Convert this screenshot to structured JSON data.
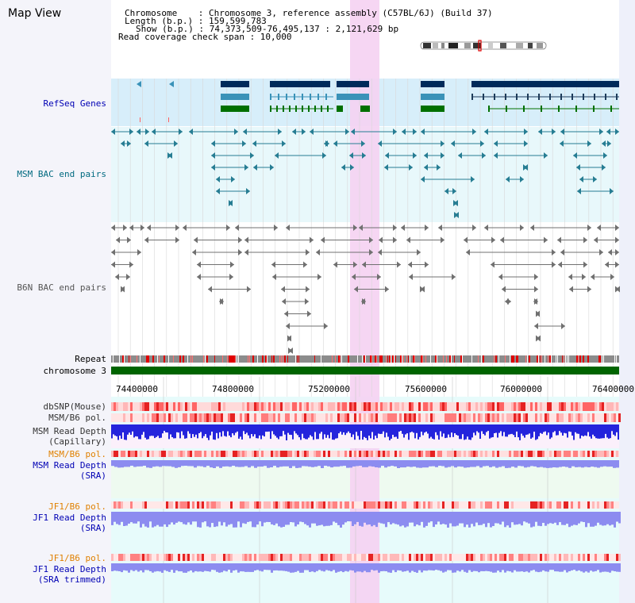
{
  "header": {
    "title": "Map View",
    "info_lines": [
      "Chromosome    : Chromosome 3, reference assembly (C57BL/6J) (Build 37)",
      "Length (b.p.) : 159,599,783",
      "Show (b.p.) : 74,373,509-76,495,137 : 2,121,629 bp",
      "Read coverage check span : 10,000"
    ]
  },
  "tracks": {
    "refseq": "RefSeq Genes",
    "msm_bac": "MSM BAC end pairs",
    "b6n_bac": "B6N BAC end pairs",
    "repeat": "Repeat",
    "chromosome": "chromosome 3",
    "dbsnp": "dbSNP(Mouse)",
    "msm_pol1": "MSM/B6 pol.",
    "msm_depth_cap_1": "MSM Read Depth",
    "msm_depth_cap_2": "(Capillary)",
    "msm_pol2": "MSM/B6 pol.",
    "msm_depth_sra_1": "MSM Read Depth",
    "msm_depth_sra_2": "(SRA)",
    "jf1_pol1": "JF1/B6 pol.",
    "jf1_depth_sra_1": "JF1 Read Depth",
    "jf1_depth_sra_2": "(SRA)",
    "jf1_pol2": "JF1/B6 pol.",
    "jf1_depth_trim_1": "JF1 Read Depth",
    "jf1_depth_trim_2": "(SRA trimmed)"
  },
  "axis": {
    "ticks": [
      "74400000",
      "74800000",
      "75200000",
      "75600000",
      "76000000",
      "76400000"
    ]
  },
  "colors": {
    "refseq_bg": "#d7eefa",
    "bac_bg": "#e8f8fb",
    "highlight": "#f5d2f2",
    "gene_dark": "#002a5a",
    "gene_mid": "#3a92b8",
    "gene_green": "#007000",
    "msm_bac": "#267d93",
    "b6n_bac": "#707070",
    "chromosome": "#006400",
    "depth_capillary": "#2424dc",
    "depth_sra": "#8c8cf0"
  }
}
